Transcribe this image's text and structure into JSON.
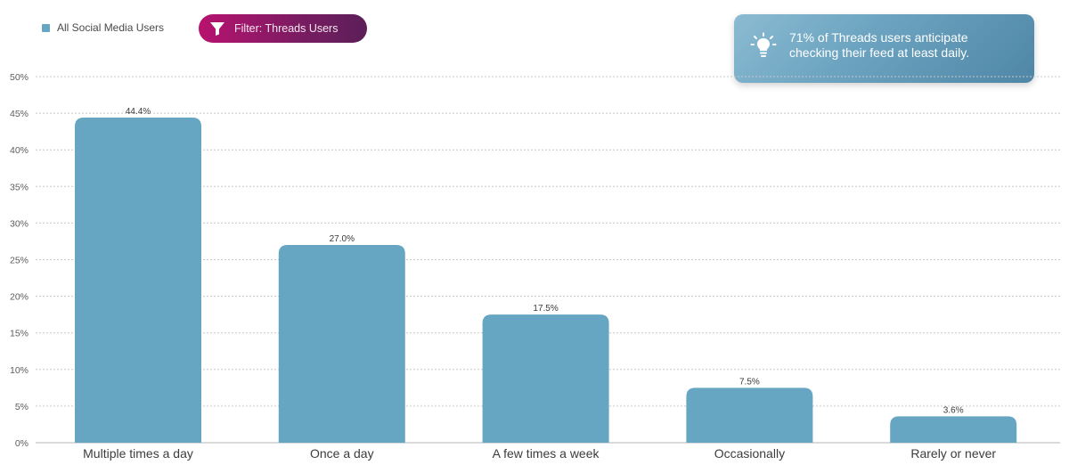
{
  "legend": {
    "label": "All Social Media Users",
    "color": "#67a6c2"
  },
  "filter": {
    "label": "Filter: Threads Users",
    "icon": "funnel-icon"
  },
  "insight": {
    "icon": "lightbulb-icon",
    "line1": "71% of Threads users anticipate",
    "line2": "checking their feed at least daily."
  },
  "chart_data": {
    "type": "bar",
    "categories": [
      "Multiple times a day",
      "Once a day",
      "A few times a week",
      "Occasionally",
      "Rarely or never"
    ],
    "values": [
      44.4,
      27.0,
      17.5,
      7.5,
      3.6
    ],
    "value_labels": [
      "44.4%",
      "27.0%",
      "17.5%",
      "7.5%",
      "3.6%"
    ],
    "series": [
      {
        "name": "All Social Media Users",
        "values": [
          44.4,
          27.0,
          17.5,
          7.5,
          3.6
        ]
      }
    ],
    "y_ticks": [
      "0%",
      "5%",
      "10%",
      "15%",
      "20%",
      "25%",
      "30%",
      "35%",
      "40%",
      "45%",
      "50%"
    ],
    "ylim": [
      0,
      50
    ],
    "grid": true,
    "bar_color": "#67a6c2",
    "title": "",
    "xlabel": "",
    "ylabel": ""
  }
}
